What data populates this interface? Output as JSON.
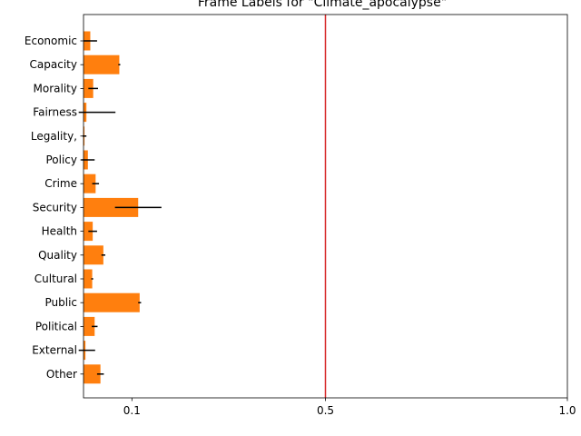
{
  "chart_data": {
    "type": "bar",
    "orientation": "horizontal",
    "title": "Frame Labels for \"Climate_apocalypse\"",
    "xlabel": "",
    "ylabel": "",
    "xlim": [
      0,
      1.0
    ],
    "xticks": [
      0.1,
      0.5,
      1.0
    ],
    "xtick_labels": [
      "0.1",
      "0.5",
      "1.0"
    ],
    "grid": false,
    "bar_color": "#ff7f0e",
    "error_color": "#000000",
    "reference_line": {
      "value": 0.5,
      "color": "#d62728"
    },
    "categories": [
      "Economic",
      "Capacity",
      "Morality",
      "Fairness",
      "Legality,",
      "Policy",
      "Crime",
      "Security",
      "Health",
      "Quality",
      "Cultural",
      "Public",
      "Political",
      "External",
      "Other"
    ],
    "values": [
      0.014,
      0.074,
      0.02,
      0.006,
      0.002,
      0.009,
      0.025,
      0.113,
      0.019,
      0.041,
      0.018,
      0.116,
      0.023,
      0.004,
      0.035
    ],
    "errors": [
      0.014,
      0.002,
      0.01,
      0.06,
      0.004,
      0.014,
      0.007,
      0.048,
      0.009,
      0.004,
      0.002,
      0.003,
      0.006,
      0.02,
      0.007
    ]
  }
}
